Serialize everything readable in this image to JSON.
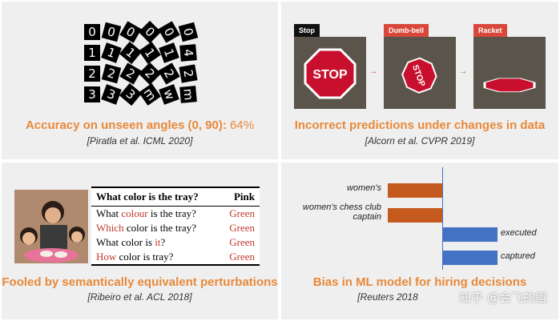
{
  "panels": {
    "angles": {
      "caption_main": "Accuracy on unseen angles (0, 90):",
      "caption_value": "64%",
      "reference": "[Piratla et al. ICML 2020]"
    },
    "predictions": {
      "caption": "Incorrect predictions under changes in data",
      "reference": "[Alcorn et al. CVPR 2019]",
      "labels": [
        "Stop",
        "Dumb-bell",
        "Racket"
      ],
      "sign_text": "STOP"
    },
    "perturbations": {
      "caption": "Fooled by semantically equivalent perturbations",
      "reference": "[Ribeiro et al. ACL 2018]",
      "table_header_q": "What color is the tray?",
      "table_header_a": "Pink",
      "rows": [
        {
          "pre": "What ",
          "hl": "colour",
          "post": " is the tray?",
          "answer": "Green"
        },
        {
          "pre": "",
          "hl": "Which",
          "post": " color is the tray?",
          "answer": "Green"
        },
        {
          "pre": "What color is ",
          "hl": "it",
          "post": "?",
          "answer": "Green"
        },
        {
          "pre": "",
          "hl": "How",
          "post": " color is tray?",
          "answer": "Green"
        }
      ]
    },
    "bias": {
      "caption": "Bias in ML model for hiring decisions",
      "reference": "[Reuters 2018",
      "watermark": "知乎 @会飞的鲲"
    }
  },
  "chart_data": {
    "type": "bar",
    "categories": [
      "women's",
      "women's chess club captain",
      "executed",
      "captured"
    ],
    "values": [
      -1,
      -1,
      1,
      1
    ],
    "colors": {
      "negative": "#c55a1e",
      "positive": "#4472c4"
    }
  },
  "colors": {
    "accent": "#e8893a",
    "panel_bg": "#efefef",
    "stop_red": "#c8102e"
  }
}
